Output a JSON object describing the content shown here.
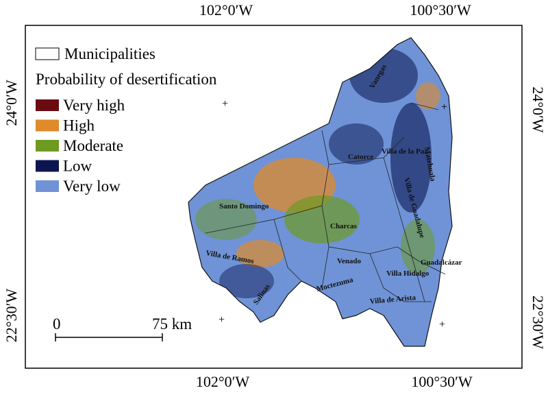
{
  "coordinates": {
    "top": [
      "102°0′W",
      "100°30′W"
    ],
    "bottom": [
      "102°0′W",
      "100°30′W"
    ],
    "left": [
      "24°0′W",
      "22°30′W"
    ],
    "right": [
      "24°0′W",
      "22°30′W"
    ]
  },
  "legend": {
    "boundary": "Municipalities",
    "title": "Probability of desertification",
    "classes": [
      {
        "label": "Very high",
        "color": "#6b0a12"
      },
      {
        "label": "High",
        "color": "#e08a2a"
      },
      {
        "label": "Moderate",
        "color": "#6e9a22"
      },
      {
        "label": "Low",
        "color": "#0b1650"
      },
      {
        "label": "Very low",
        "color": "#6f93d6"
      }
    ]
  },
  "municipalities": [
    "Santo Domingo",
    "Charcas",
    "Catorce",
    "Vanegas",
    "Venado",
    "Villa de Ramos",
    "Salinas",
    "Moctezuma",
    "Villa Hidalgo",
    "Villa de Arista",
    "Guadalcázar",
    "Matehuala",
    "Villa de la Paz",
    "Villa de Guadalupe"
  ],
  "scale_bar": {
    "start": "0",
    "end": "75 km"
  }
}
